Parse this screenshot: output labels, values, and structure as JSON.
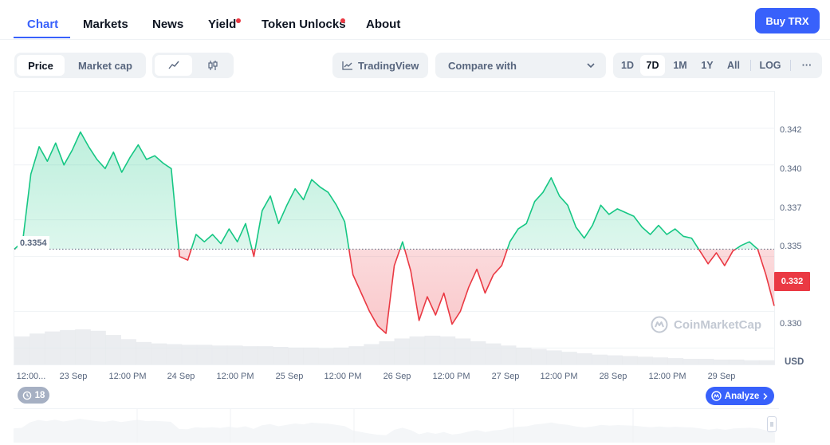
{
  "nav": {
    "tabs": [
      {
        "label": "Chart",
        "active": true
      },
      {
        "label": "Markets"
      },
      {
        "label": "News"
      },
      {
        "label": "Yield",
        "dot": true
      },
      {
        "label": "Token Unlocks",
        "dot": true
      },
      {
        "label": "About"
      }
    ],
    "buy_label": "Buy TRX"
  },
  "toolbar": {
    "price_label": "Price",
    "market_cap_label": "Market cap",
    "tradingview_label": "TradingView",
    "compare_placeholder": "Compare with",
    "ranges": [
      "1D",
      "7D",
      "1M",
      "1Y",
      "All"
    ],
    "selected_range": "7D",
    "log_label": "LOG",
    "more_label": "···",
    "line_icon": "line-chart-icon",
    "candle_icon": "candlestick-icon"
  },
  "chart_data": {
    "type": "area",
    "y_ticks": [
      "0.342",
      "0.340",
      "0.337",
      "0.335",
      "0.332",
      "0.330"
    ],
    "x_ticks": [
      "12:00...",
      "23 Sep",
      "12:00 PM",
      "24 Sep",
      "12:00 PM",
      "25 Sep",
      "12:00 PM",
      "26 Sep",
      "12:00 PM",
      "27 Sep",
      "12:00 PM",
      "28 Sep",
      "12:00 PM",
      "29 Sep"
    ],
    "ylim": [
      0.3291,
      0.344
    ],
    "baseline": 0.3354,
    "baseline_label": "0.3354",
    "current_label": "0.332",
    "unit_label": "USD",
    "series": [
      {
        "values": [
          0.3354,
          0.3358,
          0.3395,
          0.341,
          0.3402,
          0.3412,
          0.34,
          0.3408,
          0.3418,
          0.341,
          0.3403,
          0.3398,
          0.3407,
          0.3396,
          0.3404,
          0.3411,
          0.3403,
          0.3405,
          0.3401,
          0.3398,
          0.335,
          0.3348,
          0.3362,
          0.3358,
          0.3362,
          0.3357,
          0.3365,
          0.3358,
          0.3368,
          0.335,
          0.3375,
          0.3383,
          0.3368,
          0.3378,
          0.3387,
          0.3381,
          0.3392,
          0.3388,
          0.3385,
          0.3378,
          0.3369,
          0.334,
          0.333,
          0.332,
          0.3312,
          0.3308,
          0.3345,
          0.3358,
          0.3342,
          0.3315,
          0.3328,
          0.3318,
          0.333,
          0.3313,
          0.332,
          0.3333,
          0.3343,
          0.333,
          0.334,
          0.3345,
          0.3358,
          0.3365,
          0.3368,
          0.338,
          0.3385,
          0.3393,
          0.3383,
          0.3378,
          0.3366,
          0.336,
          0.3367,
          0.3378,
          0.3373,
          0.3376,
          0.3374,
          0.3372,
          0.3366,
          0.3362,
          0.3367,
          0.3362,
          0.3365,
          0.3361,
          0.336,
          0.3353,
          0.3346,
          0.3352,
          0.3345,
          0.3353,
          0.3356,
          0.3358,
          0.3354,
          0.334,
          0.3323
        ]
      }
    ],
    "volume": [
      0.4,
      0.44,
      0.47,
      0.49,
      0.5,
      0.48,
      0.42,
      0.36,
      0.32,
      0.3,
      0.29,
      0.28,
      0.28,
      0.27,
      0.27,
      0.26,
      0.26,
      0.25,
      0.24,
      0.24,
      0.23,
      0.24,
      0.26,
      0.29,
      0.33,
      0.37,
      0.4,
      0.41,
      0.4,
      0.37,
      0.33,
      0.3,
      0.27,
      0.24,
      0.22,
      0.2,
      0.18,
      0.16,
      0.14,
      0.13,
      0.12,
      0.11,
      0.1,
      0.09,
      0.08,
      0.08,
      0.07,
      0.07,
      0.06,
      0.06
    ],
    "grid": true,
    "watermark": "CoinMarketCap"
  },
  "annotations": {
    "count": "18",
    "analyze_label": "Analyze"
  },
  "colors": {
    "accent": "#3861fb",
    "up": "#16c784",
    "down": "#ea3943"
  }
}
